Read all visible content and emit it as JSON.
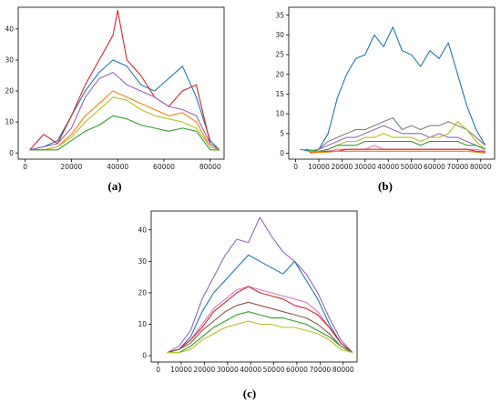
{
  "colors": {
    "blue": "#1f77b4",
    "orange": "#ff7f0e",
    "green": "#2ca02c",
    "red": "#d62728",
    "purple": "#9467bd",
    "brown": "#8c564b",
    "pink": "#e377c2",
    "gray": "#7f7f7f",
    "olive": "#bcbd22",
    "cyan": "#17becf"
  },
  "captions": [
    "(a)",
    "(b)",
    "(c)"
  ],
  "chart_data": [
    {
      "type": "line",
      "caption": "(a)",
      "xlim": [
        -3000,
        86000
      ],
      "ylim": [
        -2,
        47
      ],
      "xticks": [
        0,
        20000,
        40000,
        60000,
        80000
      ],
      "xtick_labels": [
        "0",
        "20000",
        "40000",
        "60000",
        "80000"
      ],
      "yticks": [
        0,
        10,
        20,
        30,
        40
      ],
      "ytick_labels": [
        "0",
        "10",
        "20",
        "30",
        "40"
      ],
      "grid": false,
      "series": [
        {
          "color": "blue",
          "x": [
            2000,
            8000,
            14000,
            20000,
            26000,
            32000,
            38000,
            44000,
            50000,
            56000,
            62000,
            68000,
            74000,
            80000,
            84000
          ],
          "y": [
            1,
            2,
            4,
            12,
            20,
            26,
            30,
            28,
            22,
            20,
            24,
            28,
            18,
            4,
            1
          ]
        },
        {
          "color": "red",
          "x": [
            2000,
            8000,
            14000,
            20000,
            26000,
            32000,
            38000,
            40000,
            44000,
            50000,
            56000,
            62000,
            68000,
            74000,
            80000,
            84000
          ],
          "y": [
            1,
            6,
            3,
            12,
            22,
            30,
            38,
            46,
            30,
            25,
            18,
            15,
            20,
            22,
            3,
            1
          ]
        },
        {
          "color": "purple",
          "x": [
            2000,
            8000,
            14000,
            20000,
            26000,
            32000,
            38000,
            44000,
            50000,
            56000,
            62000,
            68000,
            74000,
            80000,
            84000
          ],
          "y": [
            1,
            2,
            3,
            8,
            18,
            24,
            26,
            22,
            20,
            18,
            15,
            14,
            12,
            3,
            1
          ]
        },
        {
          "color": "orange",
          "x": [
            2000,
            8000,
            14000,
            20000,
            26000,
            32000,
            38000,
            44000,
            50000,
            56000,
            62000,
            68000,
            74000,
            80000,
            84000
          ],
          "y": [
            1,
            1,
            2,
            6,
            12,
            16,
            20,
            18,
            16,
            14,
            12,
            13,
            10,
            2,
            1
          ]
        },
        {
          "color": "olive",
          "x": [
            2000,
            8000,
            14000,
            20000,
            26000,
            32000,
            38000,
            44000,
            50000,
            56000,
            62000,
            68000,
            74000,
            80000,
            84000
          ],
          "y": [
            1,
            1,
            2,
            5,
            10,
            14,
            18,
            17,
            14,
            12,
            11,
            10,
            8,
            2,
            1
          ]
        },
        {
          "color": "green",
          "x": [
            2000,
            8000,
            14000,
            20000,
            26000,
            32000,
            38000,
            44000,
            50000,
            56000,
            62000,
            68000,
            74000,
            80000,
            84000
          ],
          "y": [
            1,
            1,
            1,
            4,
            7,
            9,
            12,
            11,
            9,
            8,
            7,
            8,
            7,
            1,
            1
          ]
        }
      ]
    },
    {
      "type": "line",
      "caption": "(b)",
      "xlim": [
        -3000,
        86000
      ],
      "ylim": [
        -1.5,
        37
      ],
      "xticks": [
        0,
        10000,
        20000,
        30000,
        40000,
        50000,
        60000,
        70000,
        80000
      ],
      "xtick_labels": [
        "0",
        "10000",
        "20000",
        "30000",
        "40000",
        "50000",
        "60000",
        "70000",
        "80000"
      ],
      "yticks": [
        0,
        5,
        10,
        15,
        20,
        25,
        30,
        35
      ],
      "ytick_labels": [
        "0",
        "5",
        "10",
        "15",
        "20",
        "25",
        "30",
        "35"
      ],
      "grid": false,
      "series": [
        {
          "color": "blue",
          "x": [
            2000,
            6000,
            10000,
            14000,
            18000,
            22000,
            26000,
            30000,
            34000,
            38000,
            42000,
            46000,
            50000,
            54000,
            58000,
            62000,
            66000,
            70000,
            74000,
            78000,
            82000
          ],
          "y": [
            1,
            0.5,
            1,
            5,
            14,
            20,
            24,
            25,
            30,
            27,
            32,
            26,
            25,
            22,
            26,
            24,
            28,
            20,
            12,
            6,
            2
          ]
        },
        {
          "color": "gray",
          "x": [
            6000,
            10000,
            14000,
            18000,
            22000,
            26000,
            30000,
            34000,
            38000,
            42000,
            46000,
            50000,
            54000,
            58000,
            62000,
            66000,
            70000,
            74000,
            78000,
            82000
          ],
          "y": [
            0.5,
            1,
            3,
            4,
            5,
            6,
            6,
            7,
            8,
            9,
            6,
            7,
            6,
            7,
            7,
            8,
            7,
            6,
            4,
            2
          ]
        },
        {
          "color": "purple",
          "x": [
            6000,
            10000,
            14000,
            18000,
            22000,
            26000,
            30000,
            34000,
            38000,
            42000,
            46000,
            50000,
            54000,
            58000,
            62000,
            66000,
            70000,
            74000,
            78000,
            82000
          ],
          "y": [
            0.5,
            1,
            2,
            3,
            4,
            4,
            5,
            6,
            7,
            6,
            5,
            5,
            5,
            4,
            5,
            4,
            4,
            3,
            2,
            1
          ]
        },
        {
          "color": "olive",
          "x": [
            6000,
            10000,
            14000,
            18000,
            22000,
            26000,
            30000,
            34000,
            38000,
            42000,
            46000,
            50000,
            54000,
            58000,
            62000,
            66000,
            70000,
            74000,
            78000,
            82000
          ],
          "y": [
            0.5,
            0.5,
            1,
            2,
            3,
            3,
            4,
            4,
            5,
            4,
            4,
            4,
            3,
            4,
            4,
            5,
            8,
            6,
            3,
            1
          ]
        },
        {
          "color": "green",
          "x": [
            4000,
            10000,
            14000,
            18000,
            22000,
            26000,
            30000,
            34000,
            38000,
            42000,
            46000,
            50000,
            54000,
            58000,
            62000,
            66000,
            70000,
            74000,
            78000,
            82000
          ],
          "y": [
            1,
            0.5,
            1,
            2,
            2,
            2,
            3,
            3,
            3,
            3,
            3,
            3,
            2,
            3,
            3,
            3,
            3,
            2,
            2,
            1
          ]
        },
        {
          "color": "pink",
          "x": [
            6000,
            10000,
            14000,
            18000,
            22000,
            26000,
            30000,
            34000,
            38000,
            42000,
            46000,
            50000,
            54000,
            58000,
            62000,
            66000,
            70000,
            74000,
            78000,
            82000
          ],
          "y": [
            0.2,
            0.5,
            0.5,
            1,
            1,
            1,
            1,
            2,
            1,
            1,
            1,
            1,
            1,
            1,
            1,
            1,
            1,
            1,
            1,
            0.5
          ]
        },
        {
          "color": "red",
          "x": [
            6000,
            10000,
            14000,
            18000,
            22000,
            26000,
            30000,
            34000,
            38000,
            42000,
            46000,
            50000,
            54000,
            58000,
            62000,
            66000,
            70000,
            74000,
            78000,
            82000
          ],
          "y": [
            0.2,
            0.3,
            0.5,
            0.5,
            1,
            1,
            1,
            1,
            1,
            1,
            1,
            1,
            1,
            1,
            1,
            1,
            1,
            1,
            0.5,
            0.3
          ]
        },
        {
          "color": "orange",
          "x": [
            6000,
            10000,
            14000,
            18000,
            22000,
            26000,
            30000,
            34000,
            38000,
            42000,
            46000,
            50000,
            54000,
            58000,
            62000,
            66000,
            70000,
            74000,
            78000,
            82000
          ],
          "y": [
            0.1,
            0.2,
            0.3,
            0.5,
            0.5,
            0.5,
            0.5,
            0.5,
            0.5,
            0.5,
            0.5,
            0.5,
            0.5,
            0.5,
            0.5,
            0.5,
            0.5,
            0.5,
            0.3,
            0.1
          ]
        }
      ]
    },
    {
      "type": "line",
      "caption": "(c)",
      "xlim": [
        -3000,
        86000
      ],
      "ylim": [
        -2,
        46
      ],
      "xticks": [
        0,
        10000,
        20000,
        30000,
        40000,
        50000,
        60000,
        70000,
        80000
      ],
      "xtick_labels": [
        "0",
        "10000",
        "20000",
        "30000",
        "40000",
        "50000",
        "60000",
        "70000",
        "80000"
      ],
      "yticks": [
        0,
        10,
        20,
        30,
        40
      ],
      "ytick_labels": [
        "0",
        "10",
        "20",
        "30",
        "40"
      ],
      "grid": false,
      "series": [
        {
          "color": "purple",
          "x": [
            4000,
            9000,
            14000,
            19000,
            24000,
            29000,
            34000,
            39000,
            44000,
            49000,
            54000,
            59000,
            64000,
            69000,
            74000,
            79000,
            84000
          ],
          "y": [
            1,
            3,
            8,
            18,
            25,
            32,
            37,
            36,
            44,
            38,
            33,
            30,
            26,
            20,
            12,
            5,
            1
          ]
        },
        {
          "color": "blue",
          "x": [
            4000,
            9000,
            14000,
            19000,
            24000,
            29000,
            34000,
            39000,
            44000,
            49000,
            54000,
            59000,
            64000,
            69000,
            74000,
            79000,
            84000
          ],
          "y": [
            1,
            2,
            6,
            14,
            20,
            24,
            28,
            32,
            30,
            28,
            26,
            30,
            24,
            18,
            10,
            4,
            1
          ]
        },
        {
          "color": "pink",
          "x": [
            4000,
            9000,
            14000,
            19000,
            24000,
            29000,
            34000,
            39000,
            44000,
            49000,
            54000,
            59000,
            64000,
            69000,
            74000,
            79000,
            84000
          ],
          "y": [
            1,
            2,
            5,
            10,
            15,
            18,
            21,
            22,
            21,
            20,
            19,
            18,
            17,
            14,
            9,
            4,
            1
          ]
        },
        {
          "color": "red",
          "x": [
            4000,
            9000,
            14000,
            19000,
            24000,
            29000,
            34000,
            39000,
            44000,
            49000,
            54000,
            59000,
            64000,
            69000,
            74000,
            79000,
            84000
          ],
          "y": [
            1,
            2,
            5,
            9,
            14,
            17,
            20,
            22,
            20,
            19,
            18,
            16,
            15,
            13,
            9,
            4,
            1
          ]
        },
        {
          "color": "brown",
          "x": [
            4000,
            9000,
            14000,
            19000,
            24000,
            29000,
            34000,
            39000,
            44000,
            49000,
            54000,
            59000,
            64000,
            69000,
            74000,
            79000,
            84000
          ],
          "y": [
            1,
            2,
            4,
            8,
            11,
            14,
            16,
            17,
            16,
            15,
            14,
            13,
            12,
            10,
            7,
            3,
            1
          ]
        },
        {
          "color": "green",
          "x": [
            4000,
            9000,
            14000,
            19000,
            24000,
            29000,
            34000,
            39000,
            44000,
            49000,
            54000,
            59000,
            64000,
            69000,
            74000,
            79000,
            84000
          ],
          "y": [
            1,
            1,
            3,
            6,
            9,
            11,
            13,
            14,
            13,
            12,
            12,
            11,
            10,
            8,
            6,
            3,
            1
          ]
        },
        {
          "color": "olive",
          "x": [
            4000,
            9000,
            14000,
            19000,
            24000,
            29000,
            34000,
            39000,
            44000,
            49000,
            54000,
            59000,
            64000,
            69000,
            74000,
            79000,
            84000
          ],
          "y": [
            1,
            1,
            2,
            5,
            7,
            9,
            10,
            11,
            10,
            10,
            9,
            9,
            8,
            7,
            5,
            2,
            1
          ]
        }
      ]
    }
  ]
}
